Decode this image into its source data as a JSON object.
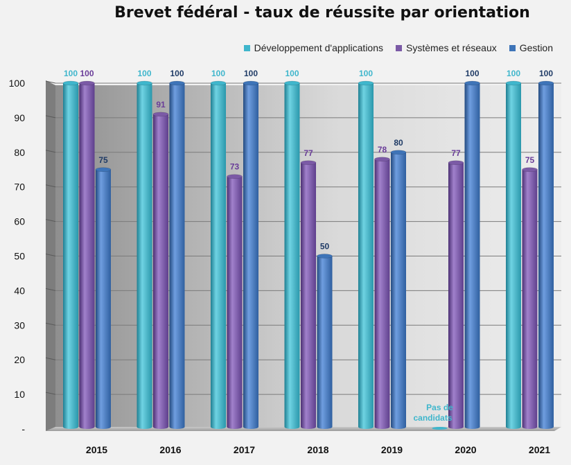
{
  "chart_data": {
    "type": "bar",
    "title": "Brevet fédéral - taux de réussite par orientation",
    "categories": [
      "2015",
      "2016",
      "2017",
      "2018",
      "2019",
      "2020",
      "2021"
    ],
    "ylim": [
      0,
      100
    ],
    "yticks": [
      "-",
      "10",
      "20",
      "30",
      "40",
      "50",
      "60",
      "70",
      "80",
      "90",
      "100"
    ],
    "grid": true,
    "legend_position": "top-right",
    "series": [
      {
        "name": "Développement d'applications",
        "color": "#3fb6cc",
        "label_color": "#3fb6cc",
        "values": [
          100,
          100,
          100,
          100,
          100,
          0,
          100
        ],
        "labels": [
          "100",
          "100",
          "100",
          "100",
          "100",
          "Pas de candidats",
          "100"
        ]
      },
      {
        "name": "Systèmes et réseaux",
        "color": "#7b5aa6",
        "label_color": "#6a3d99",
        "values": [
          100,
          91,
          73,
          77,
          78,
          77,
          75
        ],
        "labels": [
          "100",
          "91",
          "73",
          "77",
          "78",
          "77",
          "75"
        ]
      },
      {
        "name": "Gestion",
        "color": "#3e74b8",
        "label_color": "#1f3b66",
        "values": [
          75,
          100,
          100,
          50,
          80,
          100,
          100
        ],
        "labels": [
          "75",
          "100",
          "100",
          "50",
          "80",
          "100",
          "100"
        ]
      }
    ]
  }
}
